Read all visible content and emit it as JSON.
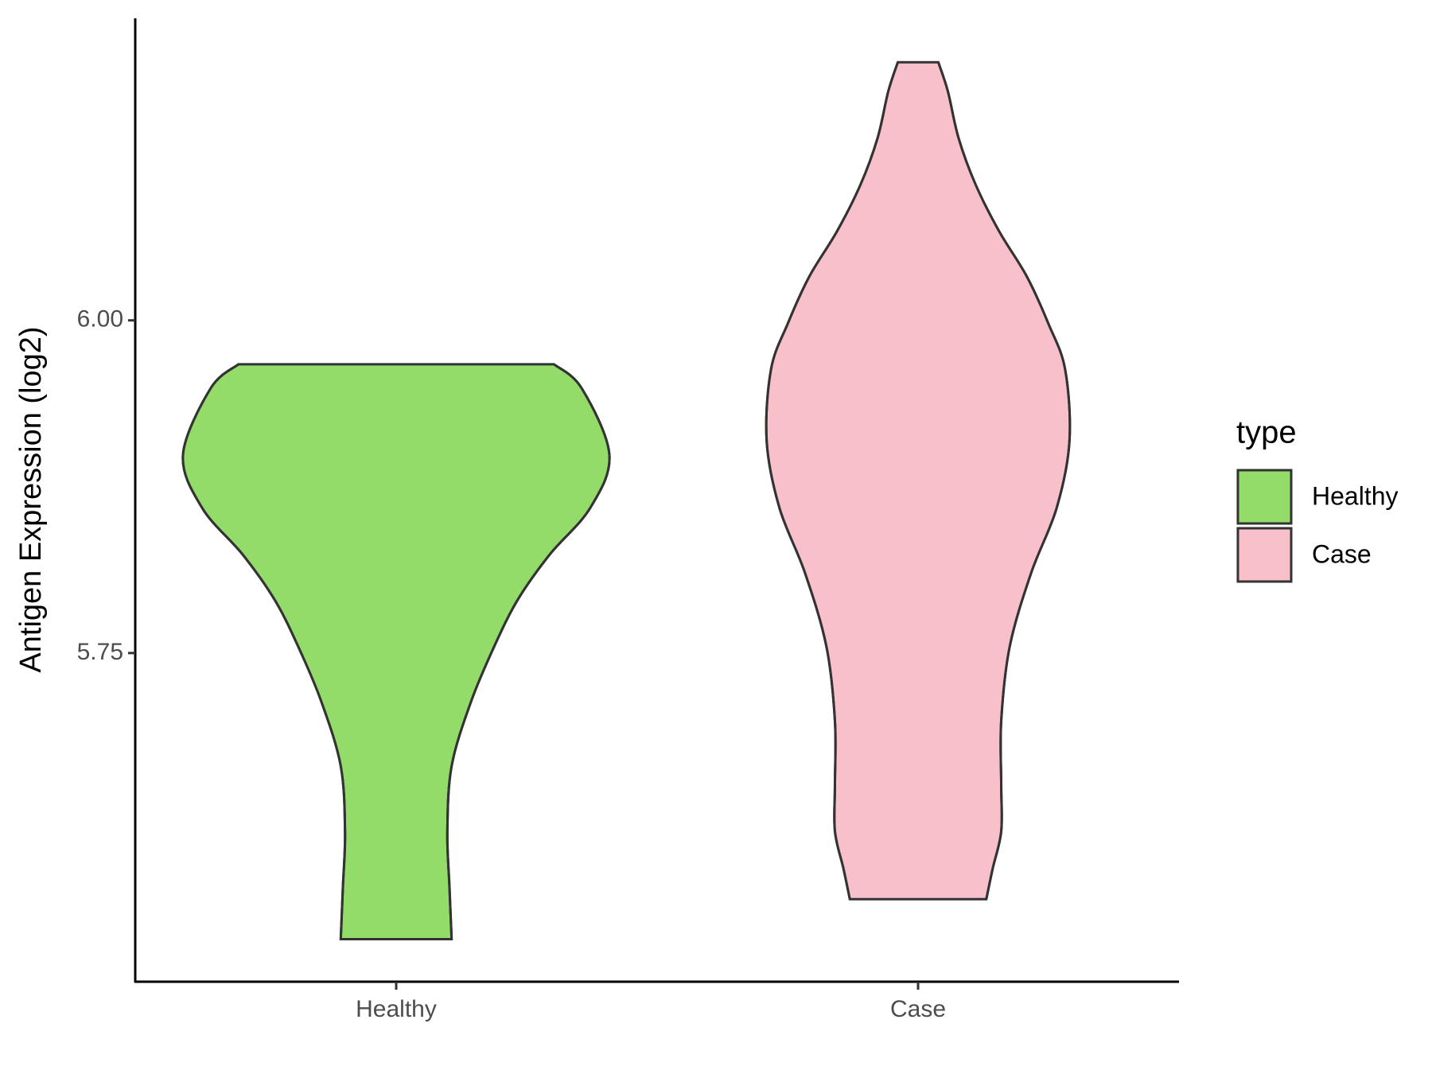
{
  "chart_data": {
    "type": "violin",
    "y_label": "Antigen Expression (log2)",
    "categories": [
      "Healthy",
      "Case"
    ],
    "series": [
      {
        "name": "Healthy",
        "color": "#93dc6a",
        "y": [
          5.967,
          5.949,
          5.899,
          5.859,
          5.824,
          5.79,
          5.755,
          5.713,
          5.665,
          5.616,
          5.574,
          5.535
        ],
        "density": [
          0.74,
          0.87,
          1.0,
          0.91,
          0.72,
          0.57,
          0.46,
          0.35,
          0.26,
          0.24,
          0.25,
          0.26
        ]
      },
      {
        "name": "Case",
        "color": "#f7c0cb",
        "y": [
          6.194,
          6.172,
          6.137,
          6.102,
          6.067,
          6.033,
          5.998,
          5.963,
          5.909,
          5.859,
          5.81,
          5.755,
          5.699,
          5.651,
          5.616,
          5.588,
          5.565
        ],
        "density": [
          0.095,
          0.14,
          0.19,
          0.27,
          0.38,
          0.51,
          0.61,
          0.69,
          0.71,
          0.65,
          0.53,
          0.43,
          0.39,
          0.39,
          0.39,
          0.35,
          0.32
        ]
      }
    ],
    "ylim": [
      5.503,
      6.227
    ],
    "yticks": [
      {
        "value": 5.75,
        "label": "5.75"
      },
      {
        "value": 6,
        "label": "6.00"
      }
    ],
    "legend_title": "type",
    "legend_position": "right"
  }
}
